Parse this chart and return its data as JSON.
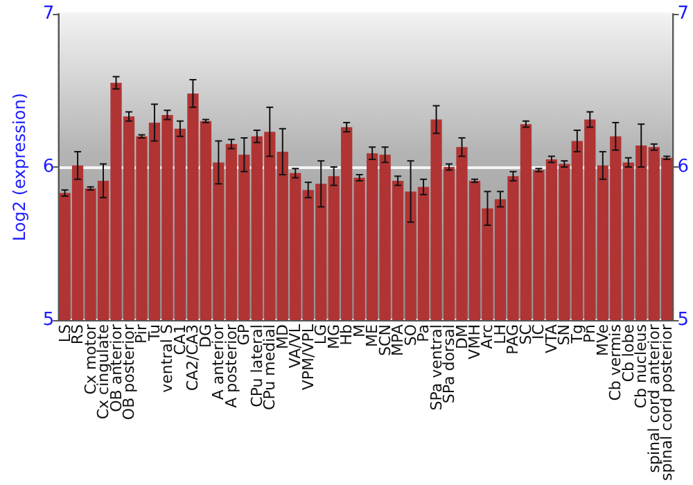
{
  "chart_data": {
    "type": "bar",
    "ylabel": "Log2 (expression)",
    "categories": [
      "LS",
      "RS",
      "Cx motor",
      "Cx cingulate",
      "OB anterior",
      "OB posterior",
      "Pir",
      "Tu",
      "ventral S",
      "CA1",
      "CA2/CA3",
      "DG",
      "A anterior",
      "A posterior",
      "GP",
      "CPu lateral",
      "CPu medial",
      "MD",
      "VA/VL",
      "VPM/VPL",
      "LG",
      "MG",
      "Hb",
      "M",
      "ME",
      "SCN",
      "MPA",
      "SO",
      "Pa",
      "SPa ventral",
      "SPa dorsal",
      "DM",
      "VMH",
      "Arc",
      "LH",
      "PAG",
      "SC",
      "IC",
      "VTA",
      "SN",
      "Tg",
      "Pn",
      "MVe",
      "Cb vermis",
      "Cb lobe",
      "Cb nucleus",
      "spinal cord anterior",
      "spinal cord posterior"
    ],
    "values": [
      5.83,
      6.01,
      5.86,
      5.91,
      6.55,
      6.33,
      6.2,
      6.29,
      6.34,
      6.25,
      6.48,
      6.3,
      6.03,
      6.15,
      6.08,
      6.2,
      6.23,
      6.1,
      5.96,
      5.85,
      5.89,
      5.94,
      6.26,
      5.93,
      6.09,
      6.08,
      5.91,
      5.84,
      5.87,
      6.31,
      6.0,
      6.13,
      5.91,
      5.73,
      5.79,
      5.94,
      6.28,
      5.98,
      6.05,
      6.02,
      6.17,
      6.31,
      6.01,
      6.2,
      6.03,
      6.14,
      6.13,
      6.06
    ],
    "errors": [
      0.02,
      0.09,
      0.01,
      0.11,
      0.04,
      0.03,
      0.01,
      0.12,
      0.03,
      0.05,
      0.09,
      0.01,
      0.14,
      0.03,
      0.11,
      0.04,
      0.16,
      0.15,
      0.03,
      0.05,
      0.15,
      0.06,
      0.03,
      0.02,
      0.04,
      0.05,
      0.03,
      0.2,
      0.05,
      0.09,
      0.02,
      0.06,
      0.01,
      0.11,
      0.05,
      0.03,
      0.02,
      0.01,
      0.02,
      0.02,
      0.07,
      0.05,
      0.09,
      0.09,
      0.03,
      0.14,
      0.02,
      0.01
    ],
    "color": "#b03434",
    "ylim": [
      5,
      7
    ],
    "yticks": [
      5,
      6,
      7
    ],
    "y2lim": [
      5,
      7
    ],
    "y2ticks": [
      5,
      6,
      7
    ],
    "grid": "y"
  }
}
